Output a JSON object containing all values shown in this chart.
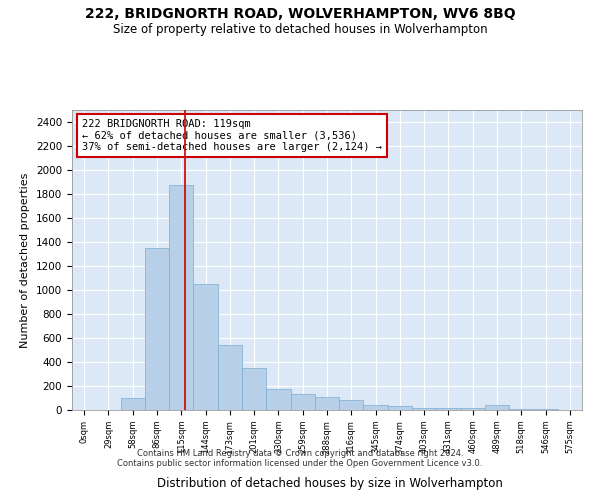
{
  "title": "222, BRIDGNORTH ROAD, WOLVERHAMPTON, WV6 8BQ",
  "subtitle": "Size of property relative to detached houses in Wolverhampton",
  "xlabel": "Distribution of detached houses by size in Wolverhampton",
  "ylabel": "Number of detached properties",
  "bin_labels": [
    "0sqm",
    "29sqm",
    "58sqm",
    "86sqm",
    "115sqm",
    "144sqm",
    "173sqm",
    "201sqm",
    "230sqm",
    "259sqm",
    "288sqm",
    "316sqm",
    "345sqm",
    "374sqm",
    "403sqm",
    "431sqm",
    "460sqm",
    "489sqm",
    "518sqm",
    "546sqm",
    "575sqm"
  ],
  "bar_heights": [
    0,
    0,
    100,
    1350,
    1875,
    1050,
    540,
    350,
    175,
    130,
    110,
    85,
    45,
    30,
    15,
    15,
    15,
    40,
    5,
    5,
    0
  ],
  "bar_color": "#b8cfe8",
  "bar_edge_color": "#7aadd4",
  "red_line_x": 4.14,
  "red_line_color": "#cc0000",
  "annotation_text": "222 BRIDGNORTH ROAD: 119sqm\n← 62% of detached houses are smaller (3,536)\n37% of semi-detached houses are larger (2,124) →",
  "annotation_box_color": "#ffffff",
  "annotation_box_edge": "#cc0000",
  "ylim": [
    0,
    2500
  ],
  "yticks": [
    0,
    200,
    400,
    600,
    800,
    1000,
    1200,
    1400,
    1600,
    1800,
    2000,
    2200,
    2400
  ],
  "background_color": "#dce8f5",
  "grid_color": "#ffffff",
  "footer_line1": "Contains HM Land Registry data © Crown copyright and database right 2024.",
  "footer_line2": "Contains public sector information licensed under the Open Government Licence v3.0."
}
